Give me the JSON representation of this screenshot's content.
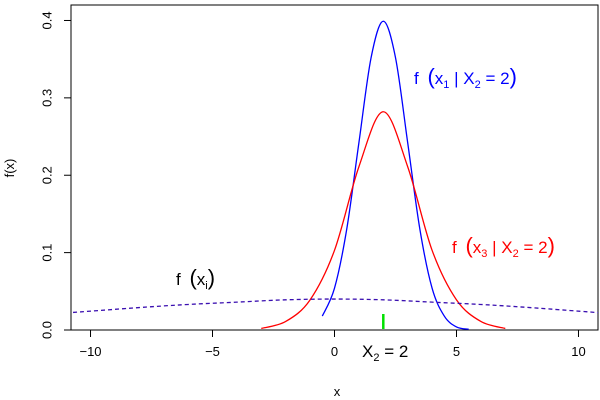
{
  "chart_data": {
    "type": "line",
    "title": "",
    "xlabel": "x",
    "ylabel": "f(x)",
    "xlim": [
      -10.8,
      10.8
    ],
    "ylim": [
      0,
      0.42
    ],
    "x_ticks": [
      -10,
      -5,
      0,
      5,
      10
    ],
    "x_tick_labels": [
      "−10",
      "−5",
      "0",
      "5",
      "10"
    ],
    "y_ticks": [
      0.0,
      0.1,
      0.2,
      0.3,
      0.4
    ],
    "y_tick_labels": [
      "0.0",
      "0.1",
      "0.2",
      "0.3",
      "0.4"
    ],
    "grid": false,
    "legend": "none",
    "series": [
      {
        "name": "f (x₁ | X₂ = 2)",
        "color": "#0000ff",
        "line_style": "solid",
        "x": [
          -0.5,
          0.0,
          0.5,
          1.0,
          1.5,
          2.0,
          2.5,
          3.0,
          3.5,
          4.0,
          4.5,
          5.0,
          5.5
        ],
        "y": [
          0.018,
          0.054,
          0.13,
          0.242,
          0.352,
          0.399,
          0.352,
          0.242,
          0.13,
          0.054,
          0.018,
          0.004,
          0.001
        ]
      },
      {
        "name": "f (x₃ | X₂ = 2)",
        "color": "#ff0000",
        "line_style": "solid",
        "x": [
          -3.0,
          -2.0,
          -1.0,
          0.0,
          1.0,
          2.0,
          3.0,
          4.0,
          5.0,
          6.0,
          7.0
        ],
        "y": [
          0.002,
          0.011,
          0.039,
          0.103,
          0.211,
          0.282,
          0.211,
          0.103,
          0.039,
          0.011,
          0.002
        ]
      },
      {
        "name": "f (xᵢ)",
        "color": "#3a0fb0",
        "line_style": "dashed",
        "x": [
          -11,
          -8,
          -6,
          -4,
          -2,
          0,
          2,
          4,
          6,
          8,
          11
        ],
        "y": [
          0.022,
          0.029,
          0.033,
          0.036,
          0.039,
          0.04,
          0.039,
          0.036,
          0.033,
          0.029,
          0.022
        ]
      }
    ],
    "annotations": {
      "blue_label_f": "f",
      "blue_label_sub1": "1",
      "blue_label_mid": " | X",
      "blue_label_sub2": "2",
      "blue_label_end": " = 2",
      "red_label_f": "f",
      "red_label_sub1": "3",
      "red_label_mid": " | X",
      "red_label_sub2": "2",
      "red_label_end": " = 2",
      "marginal_label_f": "f",
      "marginal_label_sub": "i",
      "x_marker_label_main": "X",
      "x_marker_label_sub": "2",
      "x_marker_label_end": " = 2",
      "x_marker_value": 2,
      "x_marker_color": "#00e000"
    }
  }
}
